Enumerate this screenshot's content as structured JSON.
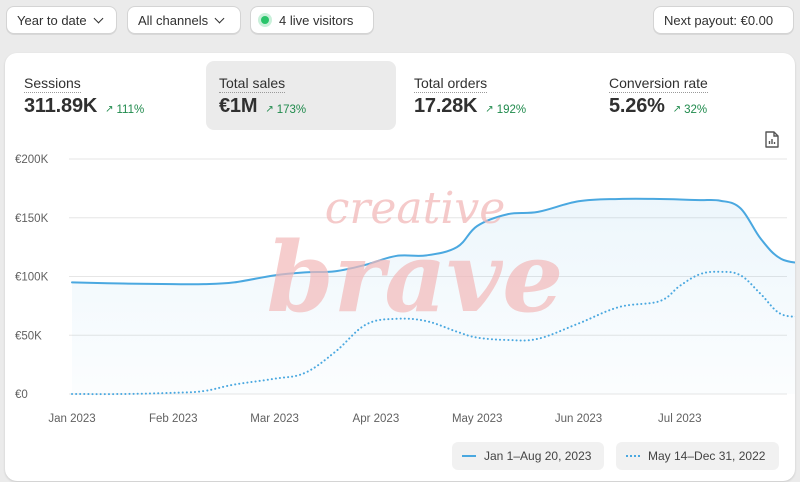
{
  "toolbar": {
    "date_range": "Year to date",
    "channels": "All channels",
    "live_visitors": "4 live visitors",
    "payout": "Next payout: €0.00"
  },
  "metrics": [
    {
      "label": "Sessions",
      "value": "311.89K",
      "delta": "111%"
    },
    {
      "label": "Total sales",
      "value": "€1M",
      "delta": "173%"
    },
    {
      "label": "Total orders",
      "value": "17.28K",
      "delta": "192%"
    },
    {
      "label": "Conversion rate",
      "value": "5.26%",
      "delta": "32%"
    }
  ],
  "watermark": {
    "line1": "creative",
    "line2": "brave"
  },
  "chart_data": {
    "type": "line",
    "categories": [
      "Jan 2023",
      "Feb 2023",
      "Mar 2023",
      "Apr 2023",
      "May 2023",
      "Jun 2023",
      "Jul 2023"
    ],
    "y_ticks": [
      "€0",
      "€50K",
      "€100K",
      "€150K",
      "€200K"
    ],
    "ylim": [
      0,
      200000
    ],
    "xlim": [
      0,
      7.25
    ],
    "grid": true,
    "legend_position": "bottom-right",
    "series": [
      {
        "name": "Jan 1–Aug 20, 2023",
        "style": "solid",
        "color": "#4aa8e0",
        "x": [
          0,
          0.5,
          1,
          1.3,
          1.6,
          2.0,
          2.3,
          2.6,
          2.9,
          3.2,
          3.5,
          3.8,
          4.0,
          4.3,
          4.6,
          5.0,
          5.4,
          5.8,
          6.0,
          6.2,
          6.4,
          6.6,
          6.8,
          7.0,
          7.25
        ],
        "y": [
          95000,
          94000,
          93500,
          93500,
          95000,
          101000,
          103500,
          104500,
          110000,
          117500,
          118000,
          125000,
          143000,
          153000,
          155000,
          164000,
          166000,
          166000,
          165500,
          165000,
          164500,
          158000,
          132000,
          115000,
          111000
        ]
      },
      {
        "name": "May 14–Dec 31, 2022",
        "style": "dotted",
        "color": "#4aa8e0",
        "x": [
          0,
          0.5,
          1,
          1.3,
          1.6,
          2.0,
          2.3,
          2.6,
          2.9,
          3.2,
          3.5,
          3.8,
          4.0,
          4.3,
          4.6,
          5.0,
          5.4,
          5.8,
          6.0,
          6.2,
          6.4,
          6.6,
          6.8,
          7.0,
          7.25
        ],
        "y": [
          0,
          0,
          1000,
          2500,
          8000,
          13000,
          18000,
          36000,
          59000,
          64000,
          62000,
          53000,
          48000,
          46000,
          47000,
          60000,
          74000,
          79000,
          92000,
          102000,
          104000,
          101000,
          85000,
          68000,
          66000
        ]
      }
    ]
  }
}
